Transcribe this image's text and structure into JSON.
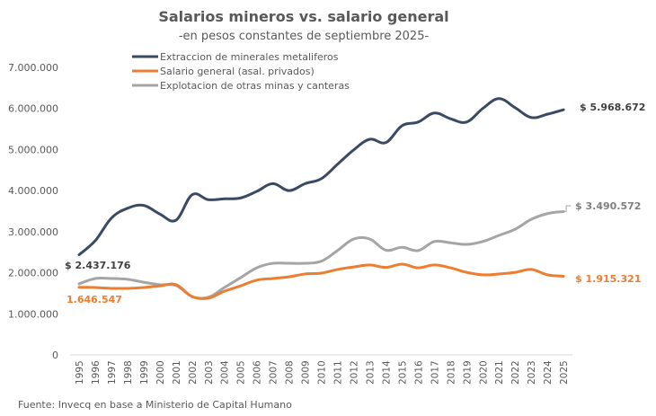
{
  "chart_data": {
    "type": "line",
    "title": "Salarios mineros vs. salario general",
    "subtitle": "-en pesos constantes de septiembre 2025-",
    "xlabel": "",
    "ylabel": "",
    "ylim": [
      0,
      7000000
    ],
    "yticks": [
      0,
      1000000,
      2000000,
      3000000,
      4000000,
      5000000,
      6000000,
      7000000
    ],
    "ytick_labels": [
      "0",
      "1.000.000",
      "2.000.000",
      "3.000.000",
      "4.000.000",
      "5.000.000",
      "6.000.000",
      "7.000.000"
    ],
    "x": [
      "1995",
      "1996",
      "1997",
      "1998",
      "1999",
      "2000",
      "2001",
      "2002",
      "2003",
      "2004",
      "2005",
      "2006",
      "2007",
      "2008",
      "2009",
      "2010",
      "2011",
      "2012",
      "2013",
      "2014",
      "2015",
      "2016",
      "2017",
      "2018",
      "2019",
      "2020",
      "2021",
      "2022",
      "2023",
      "2024",
      "2025"
    ],
    "grid": false,
    "legend_position": "top-left",
    "series": [
      {
        "name": "Extraccion de minerales metaliferos",
        "color": "#3b4a63",
        "values": [
          2437176,
          2780000,
          3330000,
          3570000,
          3640000,
          3430000,
          3280000,
          3900000,
          3780000,
          3800000,
          3820000,
          3980000,
          4170000,
          4000000,
          4170000,
          4290000,
          4640000,
          4990000,
          5250000,
          5170000,
          5580000,
          5670000,
          5890000,
          5750000,
          5670000,
          6000000,
          6240000,
          6020000,
          5780000,
          5860000,
          5968672
        ],
        "start_label": "$ 2.437.176",
        "end_label": "$ 5.968.672"
      },
      {
        "name": "Salario general (asal. privados)",
        "color": "#ed7d31",
        "values": [
          1646547,
          1640000,
          1620000,
          1620000,
          1640000,
          1680000,
          1710000,
          1420000,
          1380000,
          1550000,
          1680000,
          1820000,
          1860000,
          1900000,
          1970000,
          1990000,
          2080000,
          2140000,
          2190000,
          2130000,
          2210000,
          2120000,
          2190000,
          2120000,
          2010000,
          1950000,
          1970000,
          2010000,
          2080000,
          1950000,
          1915321
        ],
        "start_label": "1.646.547",
        "end_label": "$ 1.915.321"
      },
      {
        "name": "Explotacion de otras minas y canteras",
        "color": "#a5a5a5",
        "values": [
          1730000,
          1860000,
          1860000,
          1840000,
          1770000,
          1710000,
          1690000,
          1420000,
          1400000,
          1640000,
          1880000,
          2120000,
          2230000,
          2230000,
          2230000,
          2280000,
          2540000,
          2820000,
          2820000,
          2550000,
          2620000,
          2540000,
          2760000,
          2730000,
          2690000,
          2760000,
          2910000,
          3060000,
          3300000,
          3440000,
          3490572
        ],
        "start_label": "",
        "end_label": "$ 3.490.572"
      }
    ],
    "source": "Fuente: Invecq en base a Ministerio de Capital Humano"
  }
}
